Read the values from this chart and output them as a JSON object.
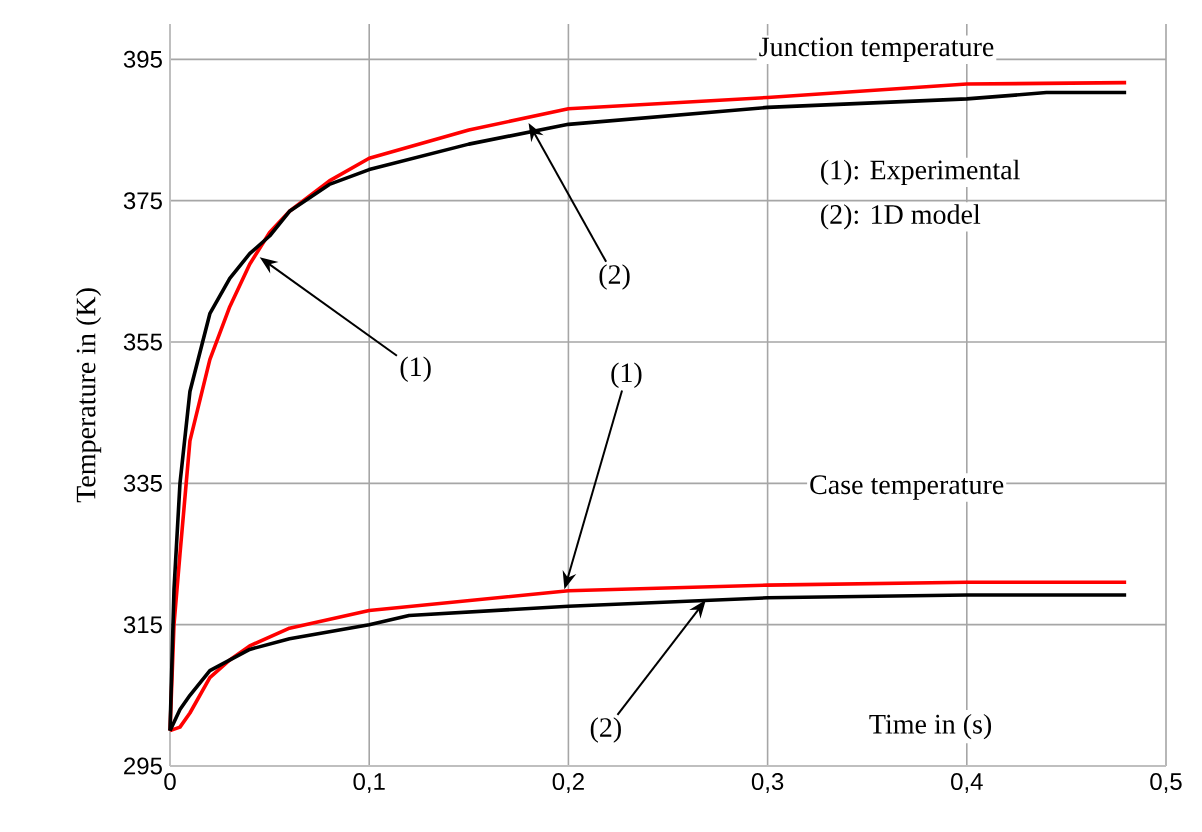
{
  "chart_data": {
    "type": "line",
    "xlabel": "Time in (s)",
    "ylabel": "Temperature in (K)",
    "xlim": [
      0,
      0.5
    ],
    "ylim": [
      295,
      400
    ],
    "xticks": [
      0,
      {
        "value": 0.1,
        "label": "0,1"
      },
      {
        "value": 0.2,
        "label": "0,2"
      },
      {
        "value": 0.3,
        "label": "0,3"
      },
      {
        "value": 0.4,
        "label": "0,4"
      },
      {
        "value": 0.5,
        "label": "0,5"
      }
    ],
    "yticks": [
      295,
      315,
      335,
      355,
      375,
      395
    ],
    "grid": true,
    "marker": "none",
    "line_style": "solid",
    "series": [
      {
        "color": "#ff0000",
        "x": [
          0,
          0.002,
          0.005,
          0.01,
          0.02,
          0.03,
          0.04,
          0.05,
          0.06,
          0.08,
          0.1,
          0.15,
          0.2,
          0.3,
          0.4,
          0.48
        ],
        "values": [
          300,
          315,
          325,
          341,
          352.5,
          360,
          366,
          370.5,
          373.5,
          377.8,
          381,
          385,
          388,
          389.6,
          391.5,
          391.7
        ]
      },
      {
        "color": "#000000",
        "x": [
          0,
          0.002,
          0.005,
          0.01,
          0.02,
          0.03,
          0.04,
          0.05,
          0.06,
          0.08,
          0.1,
          0.15,
          0.2,
          0.3,
          0.4,
          0.44,
          0.48
        ],
        "values": [
          300,
          320,
          335,
          348,
          359,
          364,
          367.5,
          370,
          373.5,
          377.3,
          379.4,
          383,
          385.8,
          388.2,
          389.4,
          390.3,
          390.3
        ]
      },
      {
        "color": "#ff0000",
        "x": [
          0,
          0.005,
          0.01,
          0.02,
          0.03,
          0.04,
          0.06,
          0.1,
          0.2,
          0.3,
          0.4,
          0.48
        ],
        "values": [
          300,
          300.5,
          302.5,
          307.5,
          310,
          312,
          314.5,
          317,
          319.8,
          320.6,
          321,
          321
        ]
      },
      {
        "color": "#000000",
        "x": [
          0,
          0.005,
          0.01,
          0.02,
          0.04,
          0.06,
          0.1,
          0.12,
          0.2,
          0.3,
          0.4,
          0.48
        ],
        "values": [
          300,
          303,
          305,
          308.5,
          311.5,
          313,
          315,
          316.3,
          317.6,
          318.8,
          319.2,
          319.2
        ]
      }
    ],
    "annotations": [
      "Junction temperature",
      "(1): Experimental",
      "(2): 1D model",
      "Case temperature",
      {
        "text": "(1)",
        "x": 0.045,
        "y": 367
      },
      {
        "text": "(2)",
        "x": 0.18,
        "y": 386
      },
      {
        "text": "(1)",
        "x": 0.198,
        "y": 320
      },
      {
        "text": "(2)",
        "x": 0.269,
        "y": 318.5
      }
    ]
  }
}
